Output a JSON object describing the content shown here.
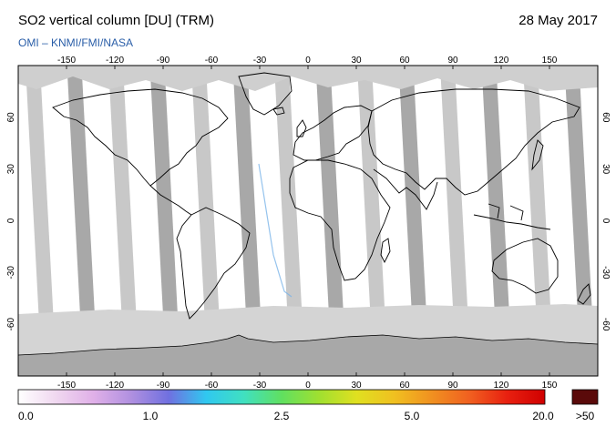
{
  "header": {
    "title": "SO2 vertical column [DU] (TRM)",
    "date": "28 May 2017",
    "subtitle": "OMI  –  KNMI/FMI/NASA"
  },
  "map": {
    "projection": "equirectangular",
    "lon_range": [
      -180,
      180
    ],
    "lat_range": [
      -90,
      90
    ],
    "lon_ticks": [
      "-150",
      "-120",
      "-90",
      "-60",
      "-30",
      "0",
      "30",
      "60",
      "90",
      "120",
      "150"
    ],
    "lat_ticks": [
      "60",
      "30",
      "0",
      "-30",
      "-60"
    ],
    "colors": {
      "background": "#ffffff",
      "swath_gap": "#c8c8c8",
      "swath_dark": "#a8a8a8",
      "no_data_polar": "#d4d4d4",
      "antarctic": "#a8a8a8",
      "coastline": "#000000"
    }
  },
  "colorbar": {
    "labels": [
      "0.0",
      "1.0",
      "2.5",
      "5.0",
      "20.0"
    ],
    "overflow_label": ">50",
    "stops": [
      "#ffffff",
      "#f0d8f0",
      "#e0b0e8",
      "#b090e0",
      "#7070e0",
      "#30c8f0",
      "#40e0c0",
      "#60e060",
      "#a0e030",
      "#e0e020",
      "#f0c020",
      "#f09020",
      "#f06020",
      "#e82010",
      "#d00000"
    ],
    "overflow_color": "#5a0a0a"
  }
}
